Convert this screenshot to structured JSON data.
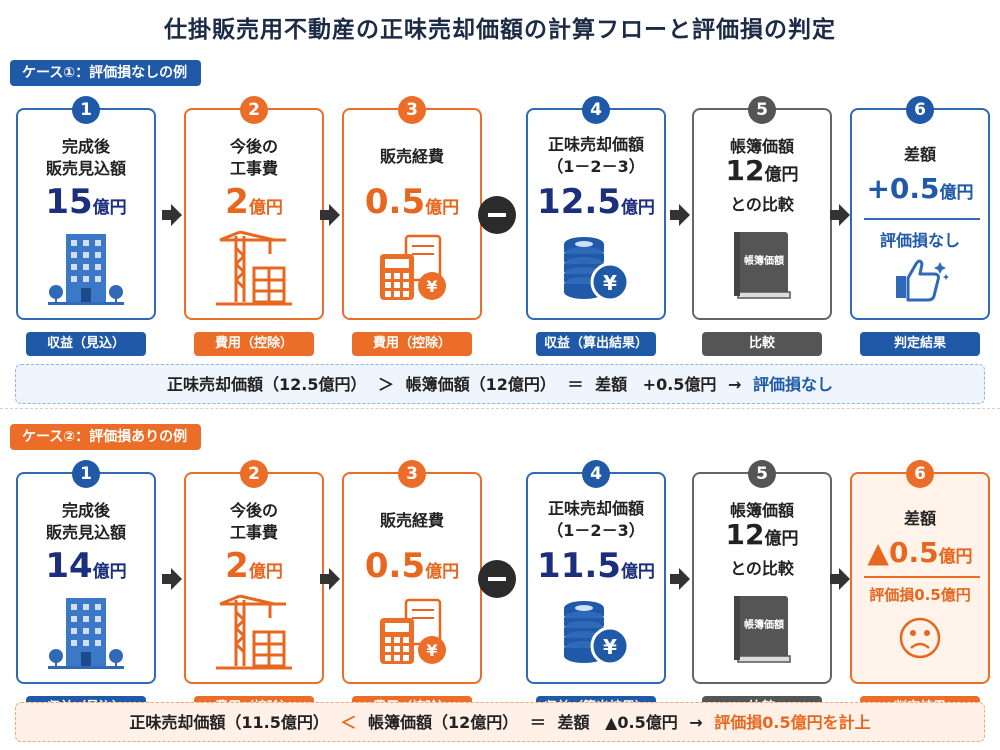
{
  "title": "仕掛販売用不動産の正味売却価額の計算フローと評価損の判定",
  "cases": [
    {
      "tag": "ケース①：評価損なしの例",
      "steps": {
        "s1": {
          "num": "1",
          "label1": "完成後",
          "label2": "販売見込額",
          "value": "15",
          "unit": "億円",
          "pill": "収益（見込）"
        },
        "s2": {
          "num": "2",
          "label1": "今後の",
          "label2": "工事費",
          "value": "2",
          "unit": "億円",
          "pill": "費用（控除）"
        },
        "s3": {
          "num": "3",
          "label1": "販売経費",
          "value": "0.5",
          "unit": "億円",
          "pill": "費用（控除）"
        },
        "s4": {
          "num": "4",
          "label1": "正味売却価額",
          "label2": "（1－2－3）",
          "value": "12.5",
          "unit": "億円",
          "pill": "収益（算出結果）"
        },
        "s5": {
          "num": "5",
          "label1": "帳簿価額",
          "value": "12",
          "unit": "億円",
          "label2": "との比較",
          "book": "帳簿価額",
          "pill": "比較"
        },
        "s6": {
          "num": "6",
          "label1": "差額",
          "value": "+0.5",
          "unit": "億円",
          "result": "評価損なし",
          "pill": "判定結果"
        }
      },
      "summary": {
        "part1": "正味売却価額（12.5億円）",
        "op1": "＞",
        "part2": "帳簿価額（12億円）",
        "op2": "＝",
        "part3": "差額",
        "part4": "+0.5億円",
        "arrow": "→",
        "result": "評価損なし"
      }
    },
    {
      "tag": "ケース②：評価損ありの例",
      "steps": {
        "s1": {
          "num": "1",
          "label1": "完成後",
          "label2": "販売見込額",
          "value": "14",
          "unit": "億円",
          "pill": "収益（見込）"
        },
        "s2": {
          "num": "2",
          "label1": "今後の",
          "label2": "工事費",
          "value": "2",
          "unit": "億円",
          "pill": "費用（控除）"
        },
        "s3": {
          "num": "3",
          "label1": "販売経費",
          "value": "0.5",
          "unit": "億円",
          "pill": "費用（控除）"
        },
        "s4": {
          "num": "4",
          "label1": "正味売却価額",
          "label2": "（1－2－3）",
          "value": "11.5",
          "unit": "億円",
          "pill": "収益（算出結果）"
        },
        "s5": {
          "num": "5",
          "label1": "帳簿価額",
          "value": "12",
          "unit": "億円",
          "label2": "との比較",
          "book": "帳簿価額",
          "pill": "比較"
        },
        "s6": {
          "num": "6",
          "label1": "差額",
          "value": "▲0.5",
          "unit": "億円",
          "result": "評価損0.5億円",
          "pill": "判定結果"
        }
      },
      "summary": {
        "part1": "正味売却価額（11.5億円）",
        "op1": "＜",
        "part2": "帳簿価額（12億円）",
        "op2": "＝",
        "part3": "差額",
        "part4": "▲0.5億円",
        "arrow": "→",
        "result": "評価損0.5億円を計上"
      }
    }
  ],
  "colors": {
    "blue": "#1f59a8",
    "navy": "#1c2f7c",
    "orange": "#ec6d28",
    "gray": "#555555"
  },
  "icons": [
    "building-icon",
    "crane-icon",
    "calculator-yen-icon",
    "coin-stack-yen-icon",
    "book-icon",
    "thumbs-up-icon",
    "sad-face-icon",
    "arrow-right-icon",
    "minus-icon"
  ]
}
